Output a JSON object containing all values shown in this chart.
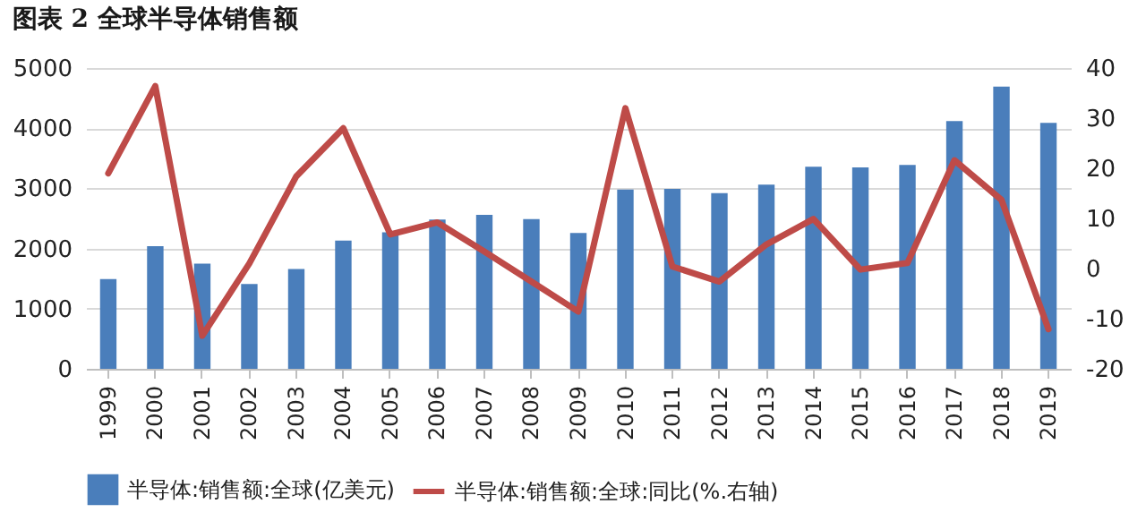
{
  "chart_data": {
    "type": "bar",
    "title": "图表 2 全球半导体销售额",
    "categories": [
      "1999",
      "2000",
      "2001",
      "2002",
      "2003",
      "2004",
      "2005",
      "2006",
      "2007",
      "2008",
      "2009",
      "2010",
      "2011",
      "2012",
      "2013",
      "2014",
      "2015",
      "2016",
      "2017",
      "2018",
      "2019"
    ],
    "series": [
      {
        "name": "半导体:销售额:全球(亿美元)",
        "color": "#4a7ebb",
        "values": [
          1490,
          2040,
          1750,
          1410,
          1660,
          2130,
          2270,
          2480,
          2560,
          2490,
          2260,
          2980,
          2990,
          2920,
          3060,
          3360,
          3350,
          3390,
          4120,
          4690,
          4090
        ]
      },
      {
        "name": "半导体:销售额:全球:同比(%.右轴)",
        "type": "line",
        "axis": "y2",
        "color": "#be4b48",
        "values": [
          19,
          36.4,
          -13.4,
          1,
          18.4,
          28,
          6.8,
          9.2,
          3.4,
          -2.6,
          -8.6,
          32,
          0.4,
          -2.6,
          4.8,
          9.9,
          -0.2,
          1.1,
          21.6,
          13.7,
          -12.1
        ]
      }
    ],
    "ylim": [
      0,
      5000
    ],
    "yticks": [
      0,
      1000,
      2000,
      3000,
      4000,
      5000
    ],
    "y2lim": [
      -20,
      40
    ],
    "y2ticks": [
      -20,
      -10,
      0,
      10,
      20,
      30,
      40
    ],
    "grid": "y",
    "legend": "bottom"
  }
}
